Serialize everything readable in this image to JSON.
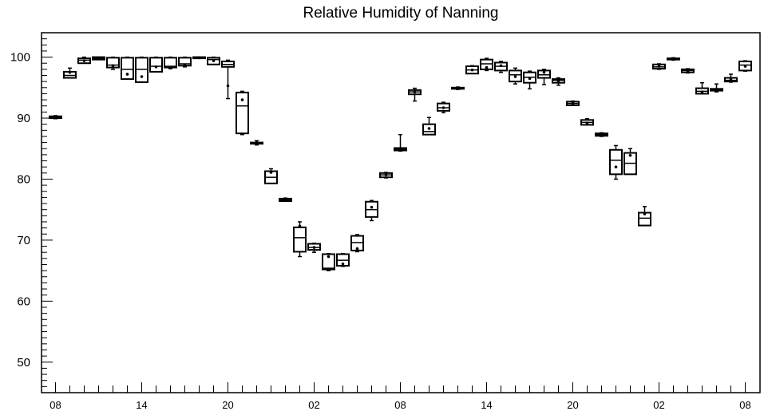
{
  "chart_data": {
    "type": "box",
    "title": "Relative Humidity of Nanning",
    "xlabel": "",
    "ylabel": "",
    "ylim": [
      45,
      104
    ],
    "yticks": [
      50,
      60,
      70,
      80,
      90,
      100
    ],
    "x_tick_labels": [
      {
        "label": "08",
        "index": 0
      },
      {
        "label": "14",
        "index": 6
      },
      {
        "label": "20",
        "index": 12
      },
      {
        "label": "02",
        "index": 18
      },
      {
        "label": "08",
        "index": 24
      },
      {
        "label": "14",
        "index": 30
      },
      {
        "label": "20",
        "index": 36
      },
      {
        "label": "02",
        "index": 42
      },
      {
        "label": "08",
        "index": 48
      }
    ],
    "boxes": [
      {
        "index": 0,
        "min": 89.9,
        "q1": 90.0,
        "median": 90.1,
        "q3": 90.3,
        "max": 90.4,
        "mean": 90.2
      },
      {
        "index": 1,
        "min": 96.6,
        "q1": 96.6,
        "median": 97.0,
        "q3": 97.6,
        "max": 98.2,
        "mean": 97.5
      },
      {
        "index": 2,
        "min": 99.0,
        "q1": 99.0,
        "median": 99.5,
        "q3": 99.8,
        "max": 100.0,
        "mean": 99.4
      },
      {
        "index": 3,
        "min": 99.6,
        "q1": 99.6,
        "median": 99.8,
        "q3": 100.0,
        "max": 100.0,
        "mean": 99.8
      },
      {
        "index": 4,
        "min": 98.0,
        "q1": 98.3,
        "median": 98.7,
        "q3": 99.9,
        "max": 100.0,
        "mean": 98.6
      },
      {
        "index": 5,
        "min": 96.4,
        "q1": 96.4,
        "median": 98.0,
        "q3": 99.9,
        "max": 100.0,
        "mean": 97.2
      },
      {
        "index": 6,
        "min": 95.9,
        "q1": 95.9,
        "median": 98.0,
        "q3": 99.9,
        "max": 100.0,
        "mean": 96.8
      },
      {
        "index": 7,
        "min": 97.6,
        "q1": 97.6,
        "median": 98.5,
        "q3": 99.9,
        "max": 100.0,
        "mean": 98.4
      },
      {
        "index": 8,
        "min": 98.1,
        "q1": 98.3,
        "median": 98.5,
        "q3": 99.9,
        "max": 100.0,
        "mean": 98.3
      },
      {
        "index": 9,
        "min": 98.4,
        "q1": 98.6,
        "median": 98.9,
        "q3": 99.9,
        "max": 100.0,
        "mean": 98.7
      },
      {
        "index": 10,
        "min": 99.8,
        "q1": 99.8,
        "median": 99.9,
        "q3": 100.0,
        "max": 100.0,
        "mean": 99.9
      },
      {
        "index": 11,
        "min": 98.8,
        "q1": 98.8,
        "median": 99.6,
        "q3": 99.9,
        "max": 100.0,
        "mean": 99.4
      },
      {
        "index": 12,
        "min": 93.2,
        "q1": 98.4,
        "median": 98.8,
        "q3": 99.3,
        "max": 99.5,
        "mean": 95.3
      },
      {
        "index": 13,
        "min": 87.3,
        "q1": 87.5,
        "median": 92.0,
        "q3": 94.2,
        "max": 94.4,
        "mean": 93.0
      },
      {
        "index": 14,
        "min": 85.6,
        "q1": 85.8,
        "median": 85.9,
        "q3": 86.0,
        "max": 86.3,
        "mean": 86.0
      },
      {
        "index": 15,
        "min": 79.3,
        "q1": 79.3,
        "median": 80.3,
        "q3": 81.3,
        "max": 81.7,
        "mean": 81.1
      },
      {
        "index": 16,
        "min": 76.4,
        "q1": 76.4,
        "median": 76.6,
        "q3": 76.8,
        "max": 76.9,
        "mean": 76.6
      },
      {
        "index": 17,
        "min": 67.3,
        "q1": 68.1,
        "median": 70.4,
        "q3": 72.1,
        "max": 73.0,
        "mean": 72.3
      },
      {
        "index": 18,
        "min": 68.0,
        "q1": 68.4,
        "median": 68.8,
        "q3": 69.4,
        "max": 69.5,
        "mean": 68.8
      },
      {
        "index": 19,
        "min": 65.0,
        "q1": 65.2,
        "median": 65.4,
        "q3": 67.7,
        "max": 67.8,
        "mean": 67.3
      },
      {
        "index": 20,
        "min": 65.7,
        "q1": 65.8,
        "median": 66.7,
        "q3": 67.7,
        "max": 67.8,
        "mean": 66.1
      },
      {
        "index": 21,
        "min": 68.1,
        "q1": 68.3,
        "median": 69.6,
        "q3": 70.7,
        "max": 70.9,
        "mean": 68.6
      },
      {
        "index": 22,
        "min": 73.2,
        "q1": 73.8,
        "median": 75.0,
        "q3": 76.3,
        "max": 76.5,
        "mean": 75.4
      },
      {
        "index": 23,
        "min": 80.2,
        "q1": 80.3,
        "median": 80.7,
        "q3": 81.0,
        "max": 81.1,
        "mean": 80.7
      },
      {
        "index": 24,
        "min": 84.6,
        "q1": 84.7,
        "median": 84.9,
        "q3": 85.1,
        "max": 87.3,
        "mean": 84.9
      },
      {
        "index": 25,
        "min": 92.8,
        "q1": 93.9,
        "median": 94.3,
        "q3": 94.6,
        "max": 94.9,
        "mean": 94.3
      },
      {
        "index": 26,
        "min": 87.3,
        "q1": 87.3,
        "median": 87.8,
        "q3": 89.0,
        "max": 90.1,
        "mean": 88.3
      },
      {
        "index": 27,
        "min": 90.9,
        "q1": 91.2,
        "median": 91.7,
        "q3": 92.4,
        "max": 92.6,
        "mean": 91.7
      },
      {
        "index": 28,
        "min": 94.7,
        "q1": 94.8,
        "median": 94.9,
        "q3": 95.0,
        "max": 95.1,
        "mean": 94.9
      },
      {
        "index": 29,
        "min": 97.3,
        "q1": 97.3,
        "median": 97.9,
        "q3": 98.5,
        "max": 98.6,
        "mean": 97.9
      },
      {
        "index": 30,
        "min": 97.8,
        "q1": 98.0,
        "median": 98.9,
        "q3": 99.6,
        "max": 99.8,
        "mean": 98.3
      },
      {
        "index": 31,
        "min": 97.5,
        "q1": 97.8,
        "median": 98.5,
        "q3": 99.1,
        "max": 99.3,
        "mean": 98.6
      },
      {
        "index": 32,
        "min": 95.6,
        "q1": 96.0,
        "median": 97.1,
        "q3": 97.8,
        "max": 98.2,
        "mean": 96.8
      },
      {
        "index": 33,
        "min": 94.8,
        "q1": 95.8,
        "median": 96.7,
        "q3": 97.5,
        "max": 97.7,
        "mean": 96.5
      },
      {
        "index": 34,
        "min": 95.5,
        "q1": 96.6,
        "median": 97.1,
        "q3": 97.8,
        "max": 98.0,
        "mean": 97.5
      },
      {
        "index": 35,
        "min": 95.4,
        "q1": 95.8,
        "median": 96.2,
        "q3": 96.4,
        "max": 96.6,
        "mean": 96.1
      },
      {
        "index": 36,
        "min": 92.1,
        "q1": 92.1,
        "median": 92.4,
        "q3": 92.7,
        "max": 92.8,
        "mean": 92.4
      },
      {
        "index": 37,
        "min": 88.9,
        "q1": 88.9,
        "median": 89.3,
        "q3": 89.7,
        "max": 89.9,
        "mean": 89.2
      },
      {
        "index": 38,
        "min": 87.0,
        "q1": 87.1,
        "median": 87.3,
        "q3": 87.5,
        "max": 87.6,
        "mean": 87.2
      },
      {
        "index": 39,
        "min": 80.0,
        "q1": 80.8,
        "median": 83.1,
        "q3": 84.8,
        "max": 85.5,
        "mean": 82.0
      },
      {
        "index": 40,
        "min": 80.8,
        "q1": 80.8,
        "median": 82.6,
        "q3": 84.3,
        "max": 85.0,
        "mean": 83.9
      },
      {
        "index": 41,
        "min": 72.4,
        "q1": 72.4,
        "median": 73.6,
        "q3": 74.5,
        "max": 75.5,
        "mean": 74.3
      },
      {
        "index": 42,
        "min": 98.0,
        "q1": 98.1,
        "median": 98.4,
        "q3": 98.8,
        "max": 98.9,
        "mean": 98.5
      },
      {
        "index": 43,
        "min": 99.5,
        "q1": 99.6,
        "median": 99.7,
        "q3": 99.8,
        "max": 99.9,
        "mean": 99.7
      },
      {
        "index": 44,
        "min": 97.4,
        "q1": 97.5,
        "median": 97.8,
        "q3": 98.0,
        "max": 98.1,
        "mean": 97.7
      },
      {
        "index": 45,
        "min": 94.0,
        "q1": 94.0,
        "median": 94.4,
        "q3": 94.9,
        "max": 95.8,
        "mean": 94.3
      },
      {
        "index": 46,
        "min": 94.3,
        "q1": 94.5,
        "median": 94.6,
        "q3": 94.8,
        "max": 95.6,
        "mean": 94.6
      },
      {
        "index": 47,
        "min": 95.9,
        "q1": 96.0,
        "median": 96.2,
        "q3": 96.6,
        "max": 97.2,
        "mean": 96.3
      },
      {
        "index": 48,
        "min": 97.7,
        "q1": 97.8,
        "median": 98.7,
        "q3": 99.3,
        "max": 99.4,
        "mean": 98.5
      }
    ]
  }
}
